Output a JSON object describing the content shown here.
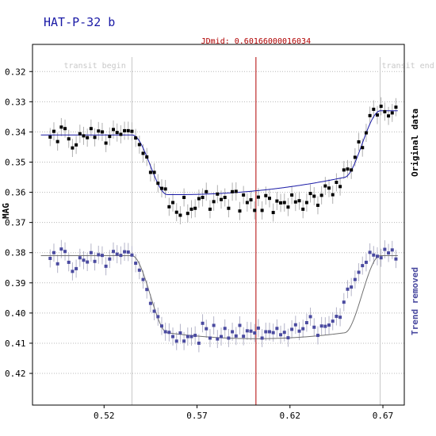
{
  "chart_data": {
    "type": "scatter",
    "title": "HAT-P-32 b",
    "ylabel": "MAG",
    "xlim": [
      0.4815,
      0.6815
    ],
    "ylim": [
      0.311,
      0.4305
    ],
    "y_inverted": true,
    "xticks": [
      0.52,
      0.57,
      0.62,
      0.67
    ],
    "xtick_labels": [
      "0.52",
      "0.57",
      "0.62",
      "0.67"
    ],
    "yticks": [
      0.32,
      0.33,
      0.34,
      0.35,
      0.36,
      0.37,
      0.38,
      0.39,
      0.4,
      0.41,
      0.42
    ],
    "ytick_labels": [
      "0.32",
      "0.33",
      "0.34",
      "0.35",
      "0.36",
      "0.37",
      "0.38",
      "0.39",
      "0.40",
      "0.41",
      "0.42"
    ],
    "transit_begin": {
      "x": 0.535,
      "label": "transit begin"
    },
    "transit_end": {
      "x": 0.6685,
      "label": "transit end"
    },
    "jd_mid": {
      "x": 0.6017,
      "label": "JDmid: 0.60166000016034"
    },
    "model_params": {
      "t1": 0.535,
      "t4": 0.6685,
      "ingress_duration": 0.019
    },
    "series": [
      {
        "name": "Original data",
        "color": "#000000",
        "baseline": 0.341,
        "post_baseline": 0.333,
        "depth": 0.0225,
        "error": 0.003,
        "x": [
          0.491,
          0.493,
          0.495,
          0.497,
          0.499,
          0.501,
          0.503,
          0.505,
          0.507,
          0.509,
          0.511,
          0.513,
          0.515,
          0.517,
          0.519,
          0.521,
          0.523,
          0.525,
          0.527,
          0.529,
          0.531,
          0.533,
          0.535,
          0.537,
          0.539,
          0.541,
          0.543,
          0.545,
          0.547,
          0.549,
          0.551,
          0.553,
          0.555,
          0.557,
          0.559,
          0.561,
          0.563,
          0.565,
          0.567,
          0.569,
          0.571,
          0.573,
          0.575,
          0.577,
          0.579,
          0.581,
          0.583,
          0.585,
          0.587,
          0.589,
          0.591,
          0.593,
          0.595,
          0.597,
          0.599,
          0.601,
          0.603,
          0.605,
          0.607,
          0.609,
          0.611,
          0.613,
          0.615,
          0.617,
          0.619,
          0.621,
          0.623,
          0.625,
          0.627,
          0.629,
          0.631,
          0.633,
          0.635,
          0.637,
          0.639,
          0.641,
          0.643,
          0.645,
          0.647,
          0.649,
          0.651,
          0.653,
          0.655,
          0.657,
          0.659,
          0.661,
          0.663,
          0.665,
          0.667,
          0.669,
          0.671,
          0.673,
          0.675,
          0.677
        ],
        "y": [
          0.3417,
          0.3398,
          0.3432,
          0.3384,
          0.3389,
          0.3423,
          0.3453,
          0.3443,
          0.3406,
          0.3413,
          0.3419,
          0.3389,
          0.3418,
          0.3397,
          0.34,
          0.3437,
          0.3415,
          0.3392,
          0.3402,
          0.3408,
          0.3396,
          0.3396,
          0.3398,
          0.342,
          0.3442,
          0.3471,
          0.3483,
          0.3534,
          0.3534,
          0.357,
          0.3587,
          0.3589,
          0.3648,
          0.3634,
          0.3666,
          0.3676,
          0.3617,
          0.367,
          0.3656,
          0.3653,
          0.3621,
          0.3617,
          0.3598,
          0.3656,
          0.3631,
          0.3606,
          0.3624,
          0.3617,
          0.3653,
          0.3598,
          0.3597,
          0.3662,
          0.3609,
          0.3634,
          0.3625,
          0.366,
          0.3616,
          0.366,
          0.3611,
          0.362,
          0.3667,
          0.3629,
          0.3635,
          0.3634,
          0.3649,
          0.3609,
          0.3632,
          0.3628,
          0.3656,
          0.3634,
          0.3604,
          0.3613,
          0.3643,
          0.361,
          0.3579,
          0.3586,
          0.3608,
          0.3567,
          0.3581,
          0.3526,
          0.3523,
          0.3526,
          0.3484,
          0.3433,
          0.3452,
          0.3403,
          0.3346,
          0.3325,
          0.3344,
          0.3315,
          0.3333,
          0.3347,
          0.3337,
          0.3318
        ]
      },
      {
        "name": "Trend removed",
        "color": "#4a4aa0",
        "baseline": 0.381,
        "post_baseline": 0.381,
        "depth": 0.0275,
        "error": 0.003,
        "x": [
          0.491,
          0.493,
          0.495,
          0.497,
          0.499,
          0.501,
          0.503,
          0.505,
          0.507,
          0.509,
          0.511,
          0.513,
          0.515,
          0.517,
          0.519,
          0.521,
          0.523,
          0.525,
          0.527,
          0.529,
          0.531,
          0.533,
          0.535,
          0.537,
          0.539,
          0.541,
          0.543,
          0.545,
          0.547,
          0.549,
          0.551,
          0.553,
          0.555,
          0.557,
          0.559,
          0.561,
          0.563,
          0.565,
          0.567,
          0.569,
          0.571,
          0.573,
          0.575,
          0.577,
          0.579,
          0.581,
          0.583,
          0.585,
          0.587,
          0.589,
          0.591,
          0.593,
          0.595,
          0.597,
          0.599,
          0.601,
          0.603,
          0.605,
          0.607,
          0.609,
          0.611,
          0.613,
          0.615,
          0.617,
          0.619,
          0.621,
          0.623,
          0.625,
          0.627,
          0.629,
          0.631,
          0.633,
          0.635,
          0.637,
          0.639,
          0.641,
          0.643,
          0.645,
          0.647,
          0.649,
          0.651,
          0.653,
          0.655,
          0.657,
          0.659,
          0.661,
          0.663,
          0.665,
          0.667,
          0.669,
          0.671,
          0.673,
          0.675,
          0.677
        ],
        "y": [
          0.3819,
          0.38,
          0.3837,
          0.3788,
          0.3796,
          0.3832,
          0.3862,
          0.3853,
          0.3817,
          0.3825,
          0.3831,
          0.38,
          0.3829,
          0.3807,
          0.3809,
          0.3845,
          0.3821,
          0.3796,
          0.3805,
          0.3809,
          0.3797,
          0.3798,
          0.3808,
          0.3835,
          0.3858,
          0.3889,
          0.3922,
          0.3968,
          0.3994,
          0.4012,
          0.4043,
          0.4062,
          0.4064,
          0.4078,
          0.4093,
          0.4066,
          0.4093,
          0.4078,
          0.4078,
          0.4074,
          0.41,
          0.4034,
          0.4052,
          0.4083,
          0.4041,
          0.4086,
          0.4078,
          0.4051,
          0.4083,
          0.4062,
          0.4076,
          0.4041,
          0.4077,
          0.4059,
          0.406,
          0.4066,
          0.405,
          0.4083,
          0.4062,
          0.4062,
          0.4065,
          0.4051,
          0.4072,
          0.4064,
          0.4082,
          0.4054,
          0.4039,
          0.406,
          0.4052,
          0.4032,
          0.4012,
          0.4047,
          0.4074,
          0.4043,
          0.4044,
          0.404,
          0.4027,
          0.4011,
          0.4014,
          0.3964,
          0.3921,
          0.3914,
          0.3889,
          0.3865,
          0.3843,
          0.3832,
          0.3799,
          0.3808,
          0.3812,
          0.3817,
          0.3789,
          0.3801,
          0.3791,
          0.3821
        ]
      }
    ]
  }
}
